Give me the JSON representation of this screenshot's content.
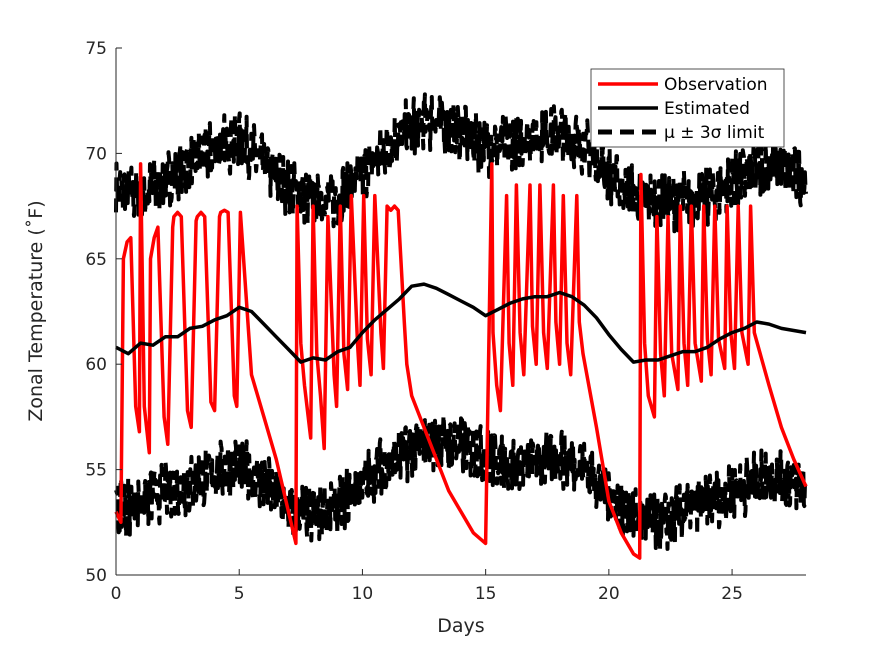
{
  "chart_data": {
    "type": "line",
    "xlabel": "Days",
    "ylabel": "Zonal Temperature (˚F)",
    "xlim": [
      0,
      28
    ],
    "ylim": [
      50,
      75
    ],
    "xticks": [
      "0",
      "5",
      "10",
      "15",
      "20",
      "25"
    ],
    "yticks": [
      "50",
      "55",
      "60",
      "65",
      "70",
      "75"
    ],
    "grid": false,
    "legend_position": "top-right",
    "series": [
      {
        "name": "Observation",
        "color": "#ff0000",
        "style": "solid",
        "x": [
          0,
          0.2,
          0.3,
          0.45,
          0.6,
          0.8,
          0.95,
          1.0,
          1.15,
          1.35,
          1.4,
          1.55,
          1.7,
          1.95,
          2.1,
          2.3,
          2.35,
          2.5,
          2.65,
          2.9,
          3.05,
          3.25,
          3.3,
          3.45,
          3.6,
          3.85,
          4.0,
          4.2,
          4.25,
          4.4,
          4.55,
          4.8,
          4.9,
          5.05,
          5.5,
          6.0,
          6.5,
          7.0,
          7.3,
          7.35,
          7.5,
          7.65,
          7.9,
          8.0,
          8.15,
          8.3,
          8.45,
          8.6,
          8.85,
          8.95,
          9.1,
          9.25,
          9.4,
          9.55,
          9.8,
          9.9,
          10.05,
          10.2,
          10.35,
          10.5,
          10.75,
          10.85,
          11.0,
          11.15,
          11.3,
          11.45,
          11.7,
          11.8,
          12.0,
          12.5,
          13.0,
          13.5,
          14.0,
          14.5,
          15.0,
          15.25,
          15.3,
          15.45,
          15.6,
          15.85,
          15.95,
          16.1,
          16.25,
          16.4,
          16.55,
          16.8,
          16.9,
          17.05,
          17.2,
          17.35,
          17.5,
          17.75,
          17.85,
          18.0,
          18.15,
          18.3,
          18.45,
          18.7,
          18.8,
          18.95,
          19.5,
          20.0,
          20.5,
          21.0,
          21.25,
          21.3,
          21.45,
          21.6,
          21.85,
          21.95,
          22.1,
          22.25,
          22.4,
          22.55,
          22.8,
          22.9,
          23.05,
          23.2,
          23.35,
          23.5,
          23.75,
          23.85,
          24.0,
          24.15,
          24.3,
          24.45,
          24.7,
          24.8,
          24.95,
          25.1,
          25.25,
          25.4,
          25.65,
          25.75,
          25.9,
          26.5,
          27.0,
          27.5,
          28.0
        ],
        "y": [
          53.0,
          52.5,
          65.0,
          65.8,
          66.0,
          58.0,
          56.8,
          69.5,
          58.0,
          55.8,
          65.0,
          66.0,
          66.5,
          57.5,
          56.2,
          66.5,
          67.0,
          67.2,
          67.0,
          57.8,
          57.0,
          66.8,
          67.0,
          67.2,
          67.0,
          58.2,
          57.8,
          67.0,
          67.2,
          67.3,
          67.2,
          58.5,
          58.0,
          67.2,
          59.5,
          57.5,
          55.5,
          53.0,
          51.5,
          67.5,
          61.0,
          59.0,
          56.5,
          67.5,
          60.5,
          58.5,
          56.0,
          67.0,
          59.5,
          58.0,
          67.5,
          60.5,
          58.8,
          68.0,
          61.0,
          59.0,
          68.0,
          61.2,
          59.5,
          68.0,
          61.5,
          59.8,
          67.5,
          67.3,
          67.5,
          67.3,
          62.0,
          60.0,
          58.5,
          57.0,
          55.5,
          54.0,
          53.0,
          52.0,
          51.5,
          69.5,
          61.5,
          59.0,
          57.8,
          68.0,
          61.0,
          59.0,
          68.5,
          61.5,
          59.5,
          68.5,
          61.8,
          60.0,
          68.5,
          61.5,
          59.8,
          68.5,
          62.0,
          60.0,
          68.0,
          61.0,
          59.5,
          68.0,
          62.0,
          60.5,
          57.0,
          53.5,
          52.0,
          51.0,
          50.8,
          69.0,
          61.0,
          58.5,
          57.5,
          67.0,
          60.5,
          58.5,
          67.0,
          60.5,
          58.8,
          67.5,
          61.0,
          59.0,
          67.5,
          61.0,
          59.2,
          67.5,
          61.2,
          59.5,
          67.5,
          61.2,
          59.8,
          67.5,
          61.5,
          59.8,
          67.5,
          61.5,
          60.0,
          67.5,
          61.5,
          59.0,
          57.0,
          55.5,
          54.2
        ]
      },
      {
        "name": "Estimated",
        "color": "#000000",
        "style": "solid",
        "x": [
          0,
          0.5,
          1,
          1.5,
          2,
          2.5,
          3,
          3.5,
          4,
          4.5,
          5,
          5.5,
          6,
          6.5,
          7,
          7.5,
          8,
          8.5,
          9,
          9.5,
          10,
          10.5,
          11,
          11.5,
          12,
          12.5,
          13,
          13.5,
          14,
          14.5,
          15,
          15.5,
          16,
          16.5,
          17,
          17.5,
          18,
          18.5,
          19,
          19.5,
          20,
          20.5,
          21,
          21.5,
          22,
          22.5,
          23,
          23.5,
          24,
          24.5,
          25,
          25.5,
          26,
          26.5,
          27,
          27.5,
          28
        ],
        "y": [
          60.8,
          60.5,
          61.0,
          60.9,
          61.3,
          61.3,
          61.7,
          61.8,
          62.1,
          62.3,
          62.7,
          62.5,
          61.9,
          61.3,
          60.7,
          60.1,
          60.3,
          60.2,
          60.6,
          60.8,
          61.5,
          62.1,
          62.6,
          63.1,
          63.7,
          63.8,
          63.6,
          63.3,
          63.0,
          62.7,
          62.3,
          62.6,
          62.9,
          63.1,
          63.2,
          63.2,
          63.4,
          63.2,
          62.8,
          62.2,
          61.4,
          60.7,
          60.1,
          60.2,
          60.2,
          60.4,
          60.6,
          60.6,
          60.8,
          61.2,
          61.5,
          61.7,
          62.0,
          61.9,
          61.7,
          61.6,
          61.5
        ]
      },
      {
        "name": "μ ± 3σ limit",
        "color": "#000000",
        "style": "dashed",
        "upper_x": [
          0,
          1,
          2,
          3,
          4,
          5,
          6,
          7,
          8,
          9,
          10,
          11,
          12,
          13,
          14,
          15,
          16,
          17,
          18,
          19,
          20,
          21,
          22,
          23,
          24,
          25,
          26,
          27,
          28
        ],
        "upper_y": [
          68.3,
          68.0,
          68.7,
          69.5,
          70.3,
          70.6,
          69.5,
          68.4,
          67.8,
          67.9,
          69.0,
          70.3,
          71.3,
          71.6,
          71.0,
          70.3,
          70.6,
          70.9,
          71.0,
          70.4,
          69.0,
          68.0,
          67.7,
          67.8,
          68.0,
          68.6,
          69.2,
          69.4,
          68.8
        ],
        "lower_x": [
          0,
          1,
          2,
          3,
          4,
          5,
          6,
          7,
          8,
          9,
          10,
          11,
          12,
          13,
          14,
          15,
          16,
          17,
          18,
          19,
          20,
          21,
          22,
          23,
          24,
          25,
          26,
          27,
          28
        ],
        "lower_y": [
          53.0,
          53.6,
          54.0,
          54.3,
          54.9,
          55.1,
          54.4,
          53.1,
          52.8,
          53.4,
          54.3,
          55.4,
          55.9,
          56.4,
          56.2,
          55.7,
          55.2,
          55.4,
          55.6,
          55.1,
          53.9,
          52.8,
          52.3,
          53.0,
          53.5,
          54.0,
          54.5,
          54.6,
          54.3
        ]
      }
    ]
  }
}
